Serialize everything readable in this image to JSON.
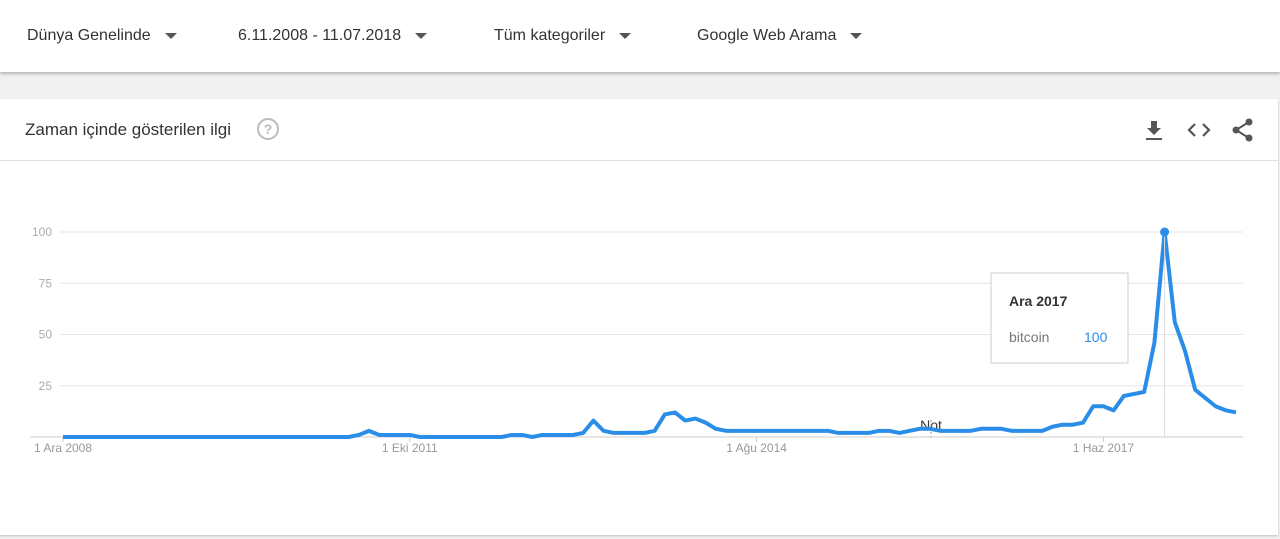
{
  "filters": [
    "Dünya Genelinde",
    "6.11.2008 - 11.07.2018",
    "Tüm kategoriler",
    "Google Web Arama"
  ],
  "card": {
    "title": "Zaman içinde gösterilen ilgi"
  },
  "chart_data": {
    "type": "line",
    "categories": [
      "1 Ara 2008",
      null,
      null,
      null,
      null,
      null,
      null,
      null,
      null,
      null,
      null,
      null,
      null,
      null,
      null,
      null,
      null,
      null,
      null,
      null,
      null,
      null,
      null,
      null,
      null,
      null,
      null,
      null,
      null,
      null,
      null,
      null,
      null,
      null,
      "1 Eki 2011",
      null,
      null,
      null,
      null,
      null,
      null,
      null,
      null,
      null,
      null,
      null,
      null,
      null,
      null,
      null,
      null,
      null,
      null,
      null,
      null,
      null,
      null,
      null,
      null,
      null,
      null,
      null,
      null,
      null,
      null,
      null,
      null,
      null,
      "1 Ağu 2014",
      null,
      null,
      null,
      null,
      null,
      null,
      null,
      null,
      null,
      null,
      null,
      null,
      null,
      null,
      null,
      null,
      null,
      null,
      null,
      null,
      null,
      null,
      null,
      null,
      null,
      null,
      null,
      null,
      null,
      null,
      null,
      null,
      null,
      "1 Haz 2017",
      null,
      null,
      null,
      null,
      null,
      null,
      null,
      null,
      null,
      null,
      null,
      null,
      null
    ],
    "series": [
      {
        "name": "bitcoin",
        "color": "#2a8ee8",
        "values": [
          0,
          0,
          0,
          0,
          0,
          0,
          0,
          0,
          0,
          0,
          0,
          0,
          0,
          0,
          0,
          0,
          0,
          0,
          0,
          0,
          0,
          0,
          0,
          0,
          0,
          0,
          0,
          0,
          0,
          1,
          3,
          1,
          1,
          1,
          1,
          0,
          0,
          0,
          0,
          0,
          0,
          0,
          0,
          0,
          1,
          1,
          0,
          1,
          1,
          1,
          1,
          2,
          8,
          3,
          2,
          2,
          2,
          2,
          3,
          11,
          12,
          8,
          9,
          7,
          4,
          3,
          3,
          3,
          3,
          3,
          3,
          3,
          3,
          3,
          3,
          3,
          2,
          2,
          2,
          2,
          3,
          3,
          2,
          3,
          4,
          4,
          3,
          3,
          3,
          3,
          4,
          4,
          4,
          3,
          3,
          3,
          3,
          5,
          6,
          6,
          7,
          15,
          15,
          13,
          20,
          21,
          22,
          46,
          100,
          56,
          42,
          23,
          19,
          15,
          13,
          12
        ]
      }
    ],
    "ylim": [
      0,
      100
    ],
    "yticks": [
      25,
      50,
      75,
      100
    ],
    "grid": true,
    "annotation": "Not",
    "tooltip": {
      "title": "Ara 2017"
    }
  }
}
